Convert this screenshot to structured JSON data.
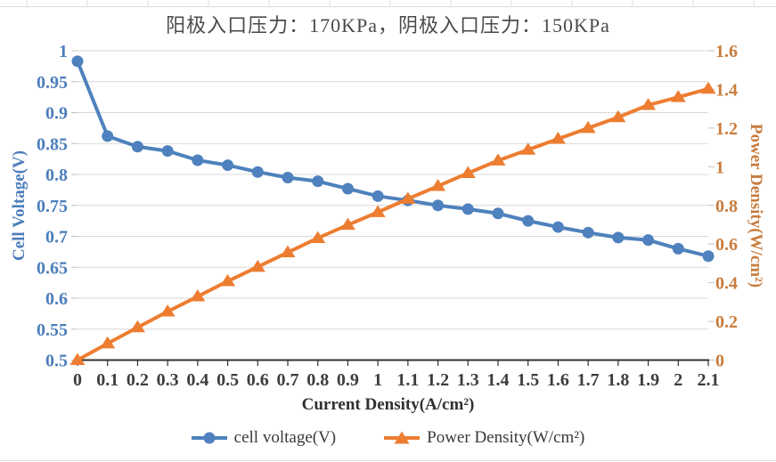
{
  "title": "阳极入口压力：170KPa，阴极入口压力：150KPa",
  "chart_data": {
    "type": "line",
    "x": [
      0,
      0.1,
      0.2,
      0.3,
      0.4,
      0.5,
      0.6,
      0.7,
      0.8,
      0.9,
      1.0,
      1.1,
      1.2,
      1.3,
      1.4,
      1.5,
      1.6,
      1.7,
      1.8,
      1.9,
      2.0,
      2.1
    ],
    "series": [
      {
        "name": "cell voltage(V)",
        "axis": "left",
        "color": "#4E81BD",
        "marker": "circle",
        "values": [
          0.983,
          0.862,
          0.845,
          0.838,
          0.823,
          0.815,
          0.804,
          0.795,
          0.789,
          0.777,
          0.765,
          0.758,
          0.75,
          0.744,
          0.737,
          0.725,
          0.715,
          0.706,
          0.698,
          0.694,
          0.68,
          0.668
        ]
      },
      {
        "name": "Power Density(W/cm²)",
        "axis": "right",
        "color": "#ED7D31",
        "marker": "triangle",
        "values": [
          0,
          0.086,
          0.169,
          0.251,
          0.329,
          0.408,
          0.482,
          0.557,
          0.631,
          0.699,
          0.765,
          0.834,
          0.9,
          0.967,
          1.032,
          1.088,
          1.144,
          1.2,
          1.256,
          1.319,
          1.36,
          1.403
        ]
      }
    ],
    "xlabel": "Current Density(A/cm²)",
    "ylabel_left": "Cell Voltage(V)",
    "ylabel_right": "Power Density(W/cm²)",
    "xlim": [
      0,
      2.1
    ],
    "ylim_left": [
      0.5,
      1.0
    ],
    "ylim_right": [
      0,
      1.6
    ],
    "x_tick_labels": [
      "0",
      "0.1",
      "0.2",
      "0.3",
      "0.4",
      "0.5",
      "0.6",
      "0.7",
      "0.8",
      "0.9",
      "1",
      "1.1",
      "1.2",
      "1.3",
      "1.4",
      "1.5",
      "1.6",
      "1.7",
      "1.8",
      "1.9",
      "2",
      "2.1"
    ],
    "left_tick_labels": [
      "1",
      "0.95",
      "0.9",
      "0.85",
      "0.8",
      "0.75",
      "0.7",
      "0.65",
      "0.6",
      "0.55",
      "0.5"
    ],
    "right_tick_labels": [
      "1.6",
      "1.4",
      "1.2",
      "1",
      "0.8",
      "0.6",
      "0.4",
      "0.2",
      "0"
    ],
    "grid": "horizontal",
    "legend_position": "bottom"
  },
  "legend": {
    "items": [
      {
        "label": "cell voltage(V)"
      },
      {
        "label": "Power Density(W/cm²)"
      }
    ]
  },
  "colors": {
    "left_axis_text": "#4D7EBB",
    "right_axis_text": "#C87C3E",
    "x_axis_text": "#3D3D3D",
    "gridline": "#D9D9D9",
    "minor_tick": "#C0C0C0",
    "axis_line": "#303030",
    "title_text": "#4A4A4A",
    "legend_text": "#3A3A3A",
    "sheet_line": "#DCDCDC"
  }
}
